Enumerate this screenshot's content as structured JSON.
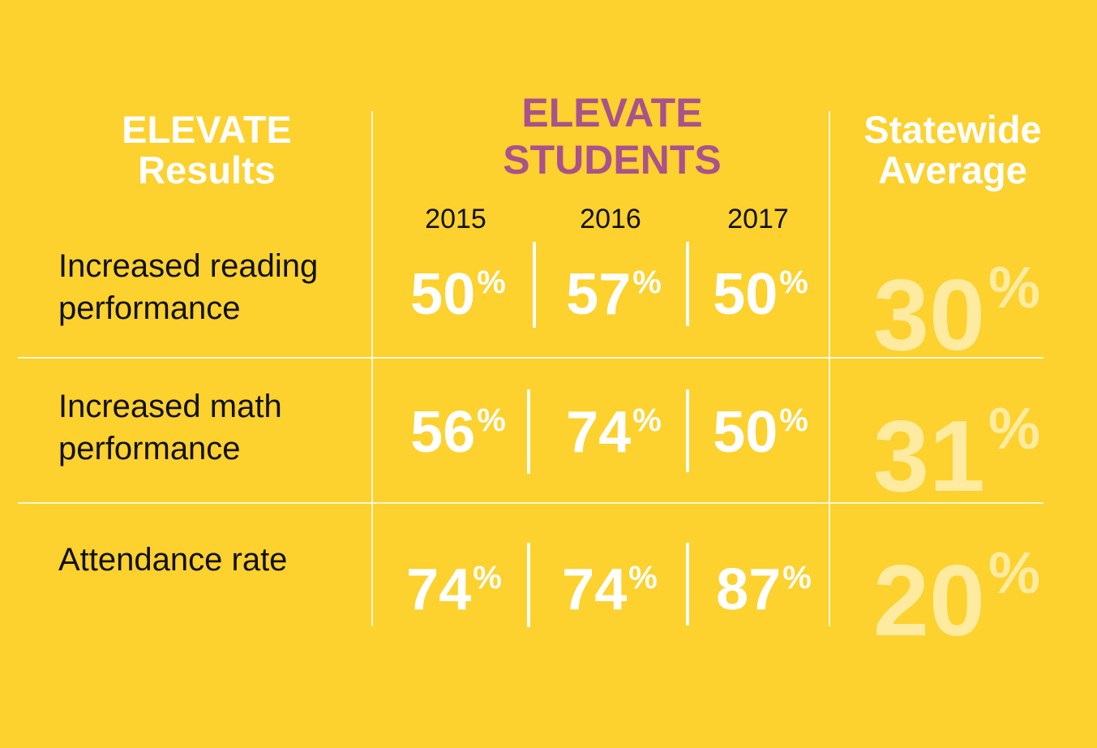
{
  "colors": {
    "background": "#FDD12E",
    "header_white": "#FFFFFF",
    "header_purple": "#A9528B",
    "value_white": "#FFFFFF",
    "statewide_value": "#FFEBA0",
    "text_dark": "#111111"
  },
  "headers": {
    "left": [
      "ELEVATE",
      "Results"
    ],
    "middle": [
      "ELEVATE",
      "STUDENTS"
    ],
    "right": [
      "Statewide",
      "Average"
    ]
  },
  "chart_data": {
    "type": "table",
    "years": [
      "2015",
      "2016",
      "2017"
    ],
    "percent_sign": "%",
    "rows": [
      {
        "label_lines": [
          "Increased reading",
          "performance"
        ],
        "values": [
          "50",
          "57",
          "50"
        ],
        "statewide": "30"
      },
      {
        "label_lines": [
          "Increased math",
          "performance"
        ],
        "values": [
          "56",
          "74",
          "50"
        ],
        "statewide": "31"
      },
      {
        "label_lines": [
          "Attendance rate"
        ],
        "values": [
          "74",
          "74",
          "87"
        ],
        "statewide": "20"
      }
    ]
  }
}
